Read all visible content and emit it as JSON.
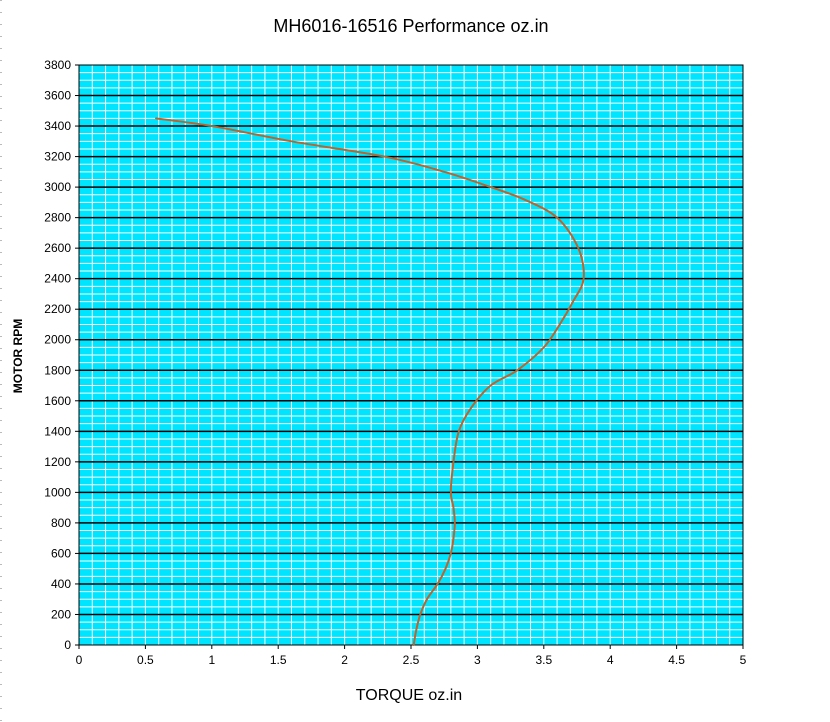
{
  "chart_data": {
    "type": "line",
    "title": "MH6016-16516   Performance oz.in",
    "xlabel": "TORQUE  oz.in",
    "ylabel": "MOTOR RPM",
    "xlim": [
      0,
      5
    ],
    "ylim": [
      0,
      3800
    ],
    "xticks": [
      0,
      0.5,
      1,
      1.5,
      2,
      2.5,
      3,
      3.5,
      4,
      4.5,
      5
    ],
    "yticks": [
      0,
      200,
      400,
      600,
      800,
      1000,
      1200,
      1400,
      1600,
      1800,
      2000,
      2200,
      2400,
      2600,
      2800,
      3000,
      3200,
      3400,
      3600,
      3800
    ],
    "grid": true,
    "plot_background": "#00e5ff",
    "minor_grid_color": "#ffffff",
    "major_grid_color": "#000000",
    "series": [
      {
        "color": "#c0622a",
        "x": [
          2.52,
          2.54,
          2.57,
          2.62,
          2.7,
          2.76,
          2.8,
          2.82,
          2.83,
          2.82,
          2.8,
          2.82,
          2.86,
          2.95,
          3.1,
          3.3,
          3.5,
          3.62,
          3.72,
          3.8,
          3.76,
          3.6,
          3.35,
          3.1,
          2.75,
          2.3,
          1.6,
          1.0,
          0.58
        ],
        "y": [
          0,
          100,
          200,
          300,
          400,
          500,
          600,
          700,
          800,
          900,
          1000,
          1200,
          1400,
          1550,
          1700,
          1800,
          1950,
          2100,
          2250,
          2400,
          2600,
          2800,
          2920,
          3000,
          3100,
          3200,
          3300,
          3400,
          3450
        ]
      }
    ]
  }
}
